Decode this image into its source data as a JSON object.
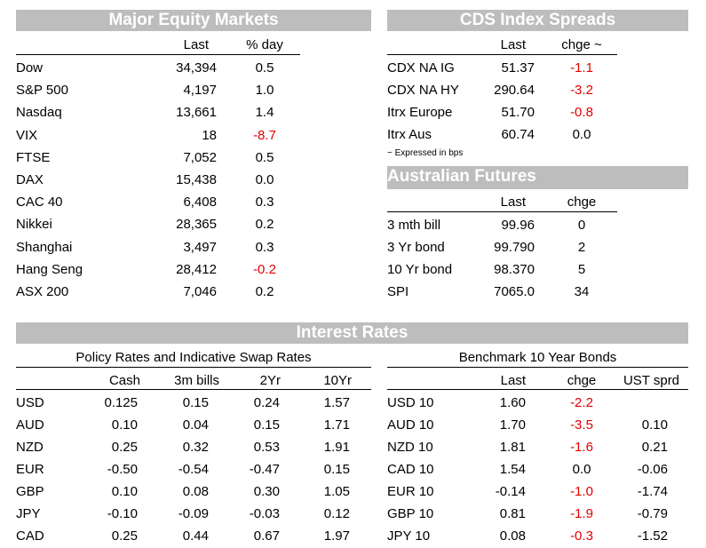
{
  "colors": {
    "band_bg": "#bdbdbd",
    "negative": "#e00000"
  },
  "equity": {
    "title": "Major Equity Markets",
    "headers": [
      "Last",
      "% day"
    ],
    "rows": [
      [
        "Dow",
        "34,394",
        "0.5"
      ],
      [
        "S&P 500",
        "4,197",
        "1.0"
      ],
      [
        "Nasdaq",
        "13,661",
        "1.4"
      ],
      [
        "VIX",
        "18",
        "-8.7"
      ],
      [
        "FTSE",
        "7,052",
        "0.5"
      ],
      [
        "DAX",
        "15,438",
        "0.0"
      ],
      [
        "CAC 40",
        "6,408",
        "0.3"
      ],
      [
        "Nikkei",
        "28,365",
        "0.2"
      ],
      [
        "Shanghai",
        "3,497",
        "0.3"
      ],
      [
        "Hang Seng",
        "28,412",
        "-0.2"
      ],
      [
        "ASX 200",
        "7,046",
        "0.2"
      ]
    ]
  },
  "cds": {
    "title": "CDS Index Spreads",
    "headers": [
      "Last",
      "chge ~"
    ],
    "rows": [
      [
        "CDX NA IG",
        "51.37",
        "-1.1"
      ],
      [
        "CDX NA HY",
        "290.64",
        "-3.2"
      ],
      [
        "Itrx Europe",
        "51.70",
        "-0.8"
      ],
      [
        "Itrx Aus",
        "60.74",
        "0.0"
      ]
    ],
    "footnote": "~ Expressed in bps"
  },
  "futures": {
    "title": "Australian Futures",
    "headers": [
      "Last",
      "chge"
    ],
    "rows": [
      [
        "3 mth bill",
        "99.96",
        "0"
      ],
      [
        "3 Yr bond",
        "99.790",
        "2"
      ],
      [
        "10 Yr bond",
        "98.370",
        "5"
      ],
      [
        "SPI",
        "7065.0",
        "34"
      ]
    ]
  },
  "interest": {
    "title": "Interest Rates",
    "policy": {
      "subtitle": "Policy Rates and Indicative Swap Rates",
      "headers": [
        "Cash",
        "3m bills",
        "2Yr",
        "10Yr"
      ],
      "rows": [
        [
          "USD",
          "0.125",
          "0.15",
          "0.24",
          "1.57"
        ],
        [
          "AUD",
          "0.10",
          "0.04",
          "0.15",
          "1.71"
        ],
        [
          "NZD",
          "0.25",
          "0.32",
          "0.53",
          "1.91"
        ],
        [
          "EUR",
          "-0.50",
          "-0.54",
          "-0.47",
          "0.15"
        ],
        [
          "GBP",
          "0.10",
          "0.08",
          "0.30",
          "1.05"
        ],
        [
          "JPY",
          "-0.10",
          "-0.09",
          "-0.03",
          "0.12"
        ],
        [
          "CAD",
          "0.25",
          "0.44",
          "0.67",
          "1.97"
        ]
      ]
    },
    "bonds": {
      "subtitle": "Benchmark 10 Year Bonds",
      "headers": [
        "Last",
        "chge",
        "UST sprd"
      ],
      "rows": [
        [
          "USD 10",
          "1.60",
          "-2.2",
          ""
        ],
        [
          "AUD 10",
          "1.70",
          "-3.5",
          "0.10"
        ],
        [
          "NZD 10",
          "1.81",
          "-1.6",
          "0.21"
        ],
        [
          "CAD 10",
          "1.54",
          "0.0",
          "-0.06"
        ],
        [
          "EUR 10",
          "-0.14",
          "-1.0",
          "-1.74"
        ],
        [
          "GBP 10",
          "0.81",
          "-1.9",
          "-0.79"
        ],
        [
          "JPY 10",
          "0.08",
          "-0.3",
          "-1.52"
        ]
      ]
    }
  }
}
